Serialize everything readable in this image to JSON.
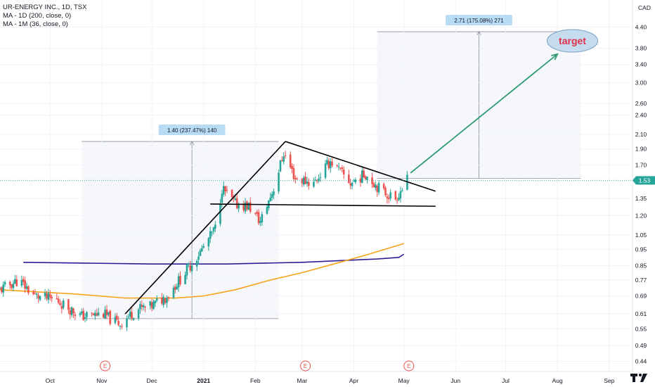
{
  "legend": {
    "symbol": "UR-ENERGY INC., 1D, TSX",
    "ma1": "MA - 1D (200, close, 0)",
    "ma2": "MA - 1M (36, close, 0)"
  },
  "currency": "CAD",
  "price_label": "1.53",
  "annotations": {
    "measure1": "1.40 (237.47%) 140",
    "measure2": "2.71 (175.08%) 271",
    "target": "target",
    "earnings_marker": "E"
  },
  "chart_data": {
    "type": "candlestick",
    "title": "UR-ENERGY INC., 1D, TSX",
    "yscale": "log",
    "ylim": [
      0.41,
      5.3
    ],
    "xlim": [
      "2020-09-01",
      "2021-09-15"
    ],
    "y_ticks": [
      4.4,
      3.8,
      3.4,
      3.0,
      2.6,
      2.4,
      2.1,
      1.9,
      1.7,
      1.53,
      1.35,
      1.2,
      1.05,
      0.95,
      0.85,
      0.77,
      0.69,
      0.61,
      0.55,
      0.49,
      0.44
    ],
    "x_ticks": [
      {
        "label": "Oct",
        "date": "2020-10-01"
      },
      {
        "label": "Nov",
        "date": "2020-11-01"
      },
      {
        "label": "Dec",
        "date": "2020-12-01"
      },
      {
        "label": "2021",
        "date": "2021-01-01"
      },
      {
        "label": "Feb",
        "date": "2021-02-01"
      },
      {
        "label": "Mar",
        "date": "2021-03-01"
      },
      {
        "label": "Apr",
        "date": "2021-04-01"
      },
      {
        "label": "May",
        "date": "2021-05-01"
      },
      {
        "label": "Jun",
        "date": "2021-06-01"
      },
      {
        "label": "Jul",
        "date": "2021-07-01"
      },
      {
        "label": "Aug",
        "date": "2021-08-01"
      },
      {
        "label": "Sep",
        "date": "2021-09-01"
      }
    ],
    "last_price": 1.53,
    "earnings_dates": [
      "2020-11-03",
      "2021-03-03",
      "2021-05-04"
    ],
    "ma_200d": [
      [
        "2020-09-01",
        0.72
      ],
      [
        "2020-10-15",
        0.7
      ],
      [
        "2020-11-15",
        0.68
      ],
      [
        "2020-12-15",
        0.68
      ],
      [
        "2021-01-01",
        0.69
      ],
      [
        "2021-01-20",
        0.72
      ],
      [
        "2021-02-10",
        0.77
      ],
      [
        "2021-03-01",
        0.81
      ],
      [
        "2021-03-20",
        0.86
      ],
      [
        "2021-04-10",
        0.92
      ],
      [
        "2021-05-01",
        0.99
      ]
    ],
    "ma_36m": [
      [
        "2020-09-15",
        0.87
      ],
      [
        "2020-12-01",
        0.86
      ],
      [
        "2021-01-15",
        0.86
      ],
      [
        "2021-03-01",
        0.87
      ],
      [
        "2021-04-15",
        0.89
      ],
      [
        "2021-04-28",
        0.9
      ],
      [
        "2021-05-01",
        0.92
      ]
    ],
    "price_path": [
      [
        "2020-09-01",
        0.72
      ],
      [
        "2020-09-12",
        0.77
      ],
      [
        "2020-09-22",
        0.69
      ],
      [
        "2020-10-05",
        0.67
      ],
      [
        "2020-10-20",
        0.6
      ],
      [
        "2020-11-02",
        0.61
      ],
      [
        "2020-11-08",
        0.58
      ],
      [
        "2020-11-12",
        0.57
      ],
      [
        "2020-11-22",
        0.63
      ],
      [
        "2020-11-30",
        0.64
      ],
      [
        "2020-12-10",
        0.69
      ],
      [
        "2020-12-20",
        0.8
      ],
      [
        "2020-12-31",
        0.95
      ],
      [
        "2021-01-08",
        1.1
      ],
      [
        "2021-01-12",
        1.45
      ],
      [
        "2021-01-20",
        1.3
      ],
      [
        "2021-01-28",
        1.28
      ],
      [
        "2021-02-04",
        1.15
      ],
      [
        "2021-02-12",
        1.45
      ],
      [
        "2021-02-18",
        1.85
      ],
      [
        "2021-02-25",
        1.55
      ],
      [
        "2021-03-08",
        1.5
      ],
      [
        "2021-03-18",
        1.75
      ],
      [
        "2021-03-30",
        1.5
      ],
      [
        "2021-04-08",
        1.6
      ],
      [
        "2021-04-18",
        1.42
      ],
      [
        "2021-04-26",
        1.35
      ],
      [
        "2021-05-03",
        1.53
      ]
    ],
    "trendlines": [
      {
        "name": "support",
        "points": [
          [
            "2020-11-15",
            0.61
          ],
          [
            "2021-02-19",
            2.0
          ]
        ]
      },
      {
        "name": "resistance",
        "points": [
          [
            "2021-02-19",
            2.0
          ],
          [
            "2021-05-20",
            1.42
          ]
        ]
      },
      {
        "name": "base",
        "points": [
          [
            "2021-01-05",
            1.3
          ],
          [
            "2021-05-20",
            1.28
          ]
        ]
      }
    ],
    "measures": [
      {
        "from": 0.59,
        "to": 2.0,
        "date": "2020-12-25",
        "range": [
          "2020-10-20",
          "2021-02-15"
        ]
      },
      {
        "from": 1.55,
        "to": 4.26,
        "date": "2021-06-15",
        "range": [
          "2021-04-15",
          "2021-08-15"
        ]
      }
    ],
    "projection_arrow": {
      "from": [
        "2021-05-05",
        1.61
      ],
      "to": [
        "2021-08-01",
        3.65
      ]
    }
  }
}
